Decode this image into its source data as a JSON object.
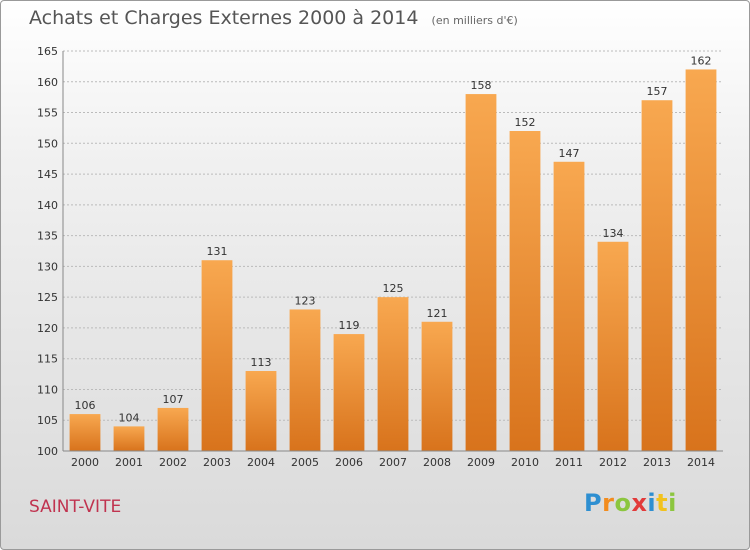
{
  "chart_data": {
    "type": "bar",
    "title": "Achats et Charges Externes 2000 à 2014",
    "subtitle": "(en milliers d'€)",
    "xlabel": "",
    "ylabel": "",
    "categories": [
      "2000",
      "2001",
      "2002",
      "2003",
      "2004",
      "2005",
      "2006",
      "2007",
      "2008",
      "2009",
      "2010",
      "2011",
      "2012",
      "2013",
      "2014"
    ],
    "values": [
      106,
      104,
      107,
      131,
      113,
      123,
      119,
      125,
      121,
      158,
      152,
      147,
      134,
      157,
      162
    ],
    "ylim": [
      100,
      165
    ],
    "yticks": [
      100,
      105,
      110,
      115,
      120,
      125,
      130,
      135,
      140,
      145,
      150,
      155,
      160,
      165
    ],
    "grid": true,
    "bar_color_light": "#f8a850",
    "bar_color_dark": "#d8731c",
    "grid_color": "#bbbbbb"
  },
  "location_label": "SAINT-VITE",
  "brand": {
    "letters": [
      {
        "char": "P",
        "color": "#2e8fd1"
      },
      {
        "char": "r",
        "color": "#f28c1e"
      },
      {
        "char": "o",
        "color": "#8cc63f"
      },
      {
        "char": "x",
        "color": "#e23a3a"
      },
      {
        "char": "i",
        "color": "#2e8fd1"
      },
      {
        "char": "t",
        "color": "#f2c21e"
      },
      {
        "char": "i",
        "color": "#8cc63f"
      }
    ]
  }
}
